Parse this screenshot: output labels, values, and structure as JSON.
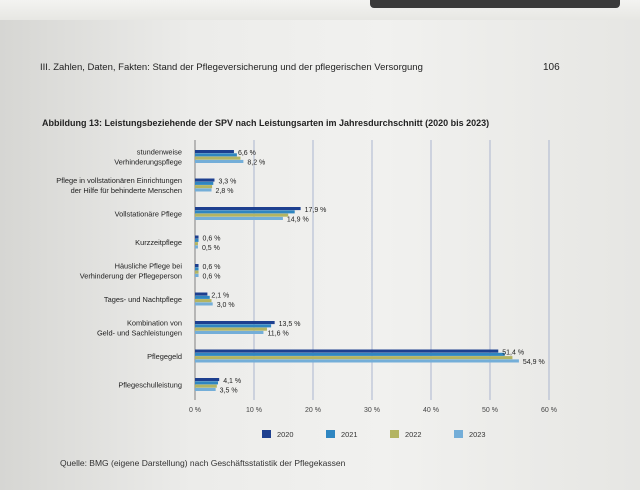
{
  "header": {
    "title": "III.  Zahlen, Daten, Fakten: Stand der Pflegeversicherung und der pflegerischen Versorgung",
    "page_number": "106"
  },
  "figure": {
    "title": "Abbildung 13: Leistungsbeziehende der SPV nach Leistungsarten im Jahresdurchschnitt (2020 bis 2023)"
  },
  "source": "Quelle: BMG (eigene Darstellung) nach Geschäftsstatistik der Pflegekassen",
  "chart_data": {
    "type": "bar",
    "orientation": "horizontal",
    "title": "Abbildung 13: Leistungsbeziehende der SPV nach Leistungsarten im Jahresdurchschnitt (2020 bis 2023)",
    "xlabel": "",
    "ylabel": "",
    "xlim": [
      0,
      60
    ],
    "xticks": [
      "0 %",
      "10 %",
      "20 %",
      "30 %",
      "40 %",
      "50 %",
      "60 %"
    ],
    "grid": true,
    "legend_position": "bottom",
    "categories": [
      [
        "stundenweise",
        "Verhinderungspflege"
      ],
      [
        "Pflege in vollstationären Einrichtungen",
        "der Hilfe für behinderte Menschen"
      ],
      [
        "Vollstationäre Pflege"
      ],
      [
        "Kurzzeitpflege"
      ],
      [
        "Häusliche Pflege bei",
        "Verhinderung der Pflegeperson"
      ],
      [
        "Tages- und Nachtpflege"
      ],
      [
        "Kombination von",
        "Geld- und Sachleistungen"
      ],
      [
        "Pflegegeld"
      ],
      [
        "Pflegeschulleistung"
      ]
    ],
    "series": [
      {
        "name": "2020",
        "color": "#1d3f8f",
        "values": [
          6.6,
          3.3,
          17.9,
          0.6,
          0.6,
          2.1,
          13.5,
          51.4,
          4.1
        ]
      },
      {
        "name": "2021",
        "color": "#2f86c1",
        "values": [
          7.1,
          3.1,
          16.9,
          0.6,
          0.6,
          2.5,
          12.9,
          52.5,
          3.9
        ]
      },
      {
        "name": "2022",
        "color": "#b3b462",
        "values": [
          7.7,
          2.9,
          15.8,
          0.5,
          0.6,
          2.8,
          12.2,
          53.8,
          3.7
        ]
      },
      {
        "name": "2023",
        "color": "#74aed8",
        "values": [
          8.2,
          2.8,
          14.9,
          0.5,
          0.6,
          3.0,
          11.6,
          54.9,
          3.5
        ]
      }
    ],
    "data_labels": [
      {
        "category": 0,
        "series": 0,
        "text": "6,6 %"
      },
      {
        "category": 0,
        "series": 3,
        "text": "8,2 %"
      },
      {
        "category": 1,
        "series": 0,
        "text": "3,3 %"
      },
      {
        "category": 1,
        "series": 3,
        "text": "2,8 %"
      },
      {
        "category": 2,
        "series": 0,
        "text": "17,9 %"
      },
      {
        "category": 2,
        "series": 3,
        "text": "14,9 %"
      },
      {
        "category": 3,
        "series": 0,
        "text": "0,6 %"
      },
      {
        "category": 3,
        "series": 3,
        "text": "0,5 %"
      },
      {
        "category": 4,
        "series": 0,
        "text": "0,6 %"
      },
      {
        "category": 4,
        "series": 3,
        "text": "0,6 %"
      },
      {
        "category": 5,
        "series": 0,
        "text": "2,1 %"
      },
      {
        "category": 5,
        "series": 3,
        "text": "3,0 %"
      },
      {
        "category": 6,
        "series": 0,
        "text": "13,5 %"
      },
      {
        "category": 6,
        "series": 3,
        "text": "11,6 %"
      },
      {
        "category": 7,
        "series": 0,
        "text": "51,4 %"
      },
      {
        "category": 7,
        "series": 3,
        "text": "54,9 %"
      },
      {
        "category": 8,
        "series": 0,
        "text": "4,1 %"
      },
      {
        "category": 8,
        "series": 3,
        "text": "3,5 %"
      }
    ]
  }
}
